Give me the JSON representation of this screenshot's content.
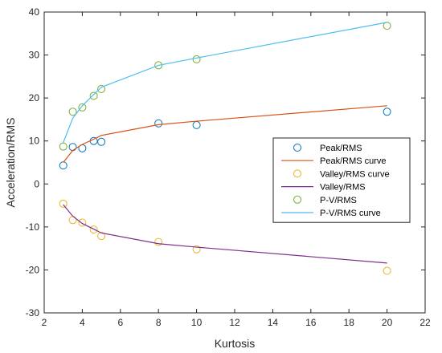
{
  "chart_data": {
    "type": "scatter",
    "xlabel": "Kurtosis",
    "ylabel": "Acceleration/RMS",
    "xlim": [
      2,
      22
    ],
    "ylim": [
      -30,
      40
    ],
    "xticks": [
      2,
      4,
      6,
      8,
      10,
      12,
      14,
      16,
      18,
      20,
      22
    ],
    "yticks": [
      -30,
      -20,
      -10,
      0,
      10,
      20,
      30,
      40
    ],
    "grid": false,
    "legend_position": "right",
    "series": [
      {
        "name": "Peak/RMS",
        "kind": "markers",
        "color": "#0072BD",
        "x": [
          3,
          3.5,
          4,
          4.6,
          5,
          8,
          10,
          20
        ],
        "y": [
          4.3,
          8.6,
          8.3,
          10.0,
          9.8,
          14.1,
          13.7,
          16.8
        ]
      },
      {
        "name": "Peak/RMS curve",
        "kind": "line",
        "color": "#D95319",
        "x": [
          3,
          3.5,
          4,
          4.6,
          5,
          8,
          10,
          20
        ],
        "y": [
          5.0,
          7.8,
          9.2,
          10.4,
          11.3,
          13.8,
          14.6,
          18.2
        ]
      },
      {
        "name": "Valley/RMS curve",
        "kind": "markers",
        "color": "#EDB120",
        "x": [
          3,
          3.5,
          4,
          4.6,
          5,
          8,
          10,
          20
        ],
        "y": [
          -4.6,
          -8.4,
          -9.0,
          -10.6,
          -12.1,
          -13.5,
          -15.2,
          -20.2
        ]
      },
      {
        "name": "Valley/RMS",
        "kind": "line",
        "color": "#7E2F8E",
        "x": [
          3,
          3.5,
          4,
          4.6,
          5,
          8,
          10,
          20
        ],
        "y": [
          -4.8,
          -7.5,
          -9.2,
          -10.5,
          -11.4,
          -13.9,
          -14.7,
          -18.4
        ]
      },
      {
        "name": "P-V/RMS",
        "kind": "markers",
        "color": "#77AC30",
        "x": [
          3,
          3.5,
          4,
          4.6,
          5,
          8,
          10,
          20
        ],
        "y": [
          8.7,
          16.8,
          17.8,
          20.5,
          22.1,
          27.6,
          29.0,
          36.8
        ]
      },
      {
        "name": "P-V/RMS curve",
        "kind": "line",
        "color": "#4DBEEE",
        "x": [
          3,
          3.5,
          4,
          4.6,
          5,
          8,
          10,
          20
        ],
        "y": [
          9.6,
          15.3,
          18.2,
          20.8,
          22.5,
          27.6,
          29.3,
          37.6
        ]
      }
    ]
  }
}
